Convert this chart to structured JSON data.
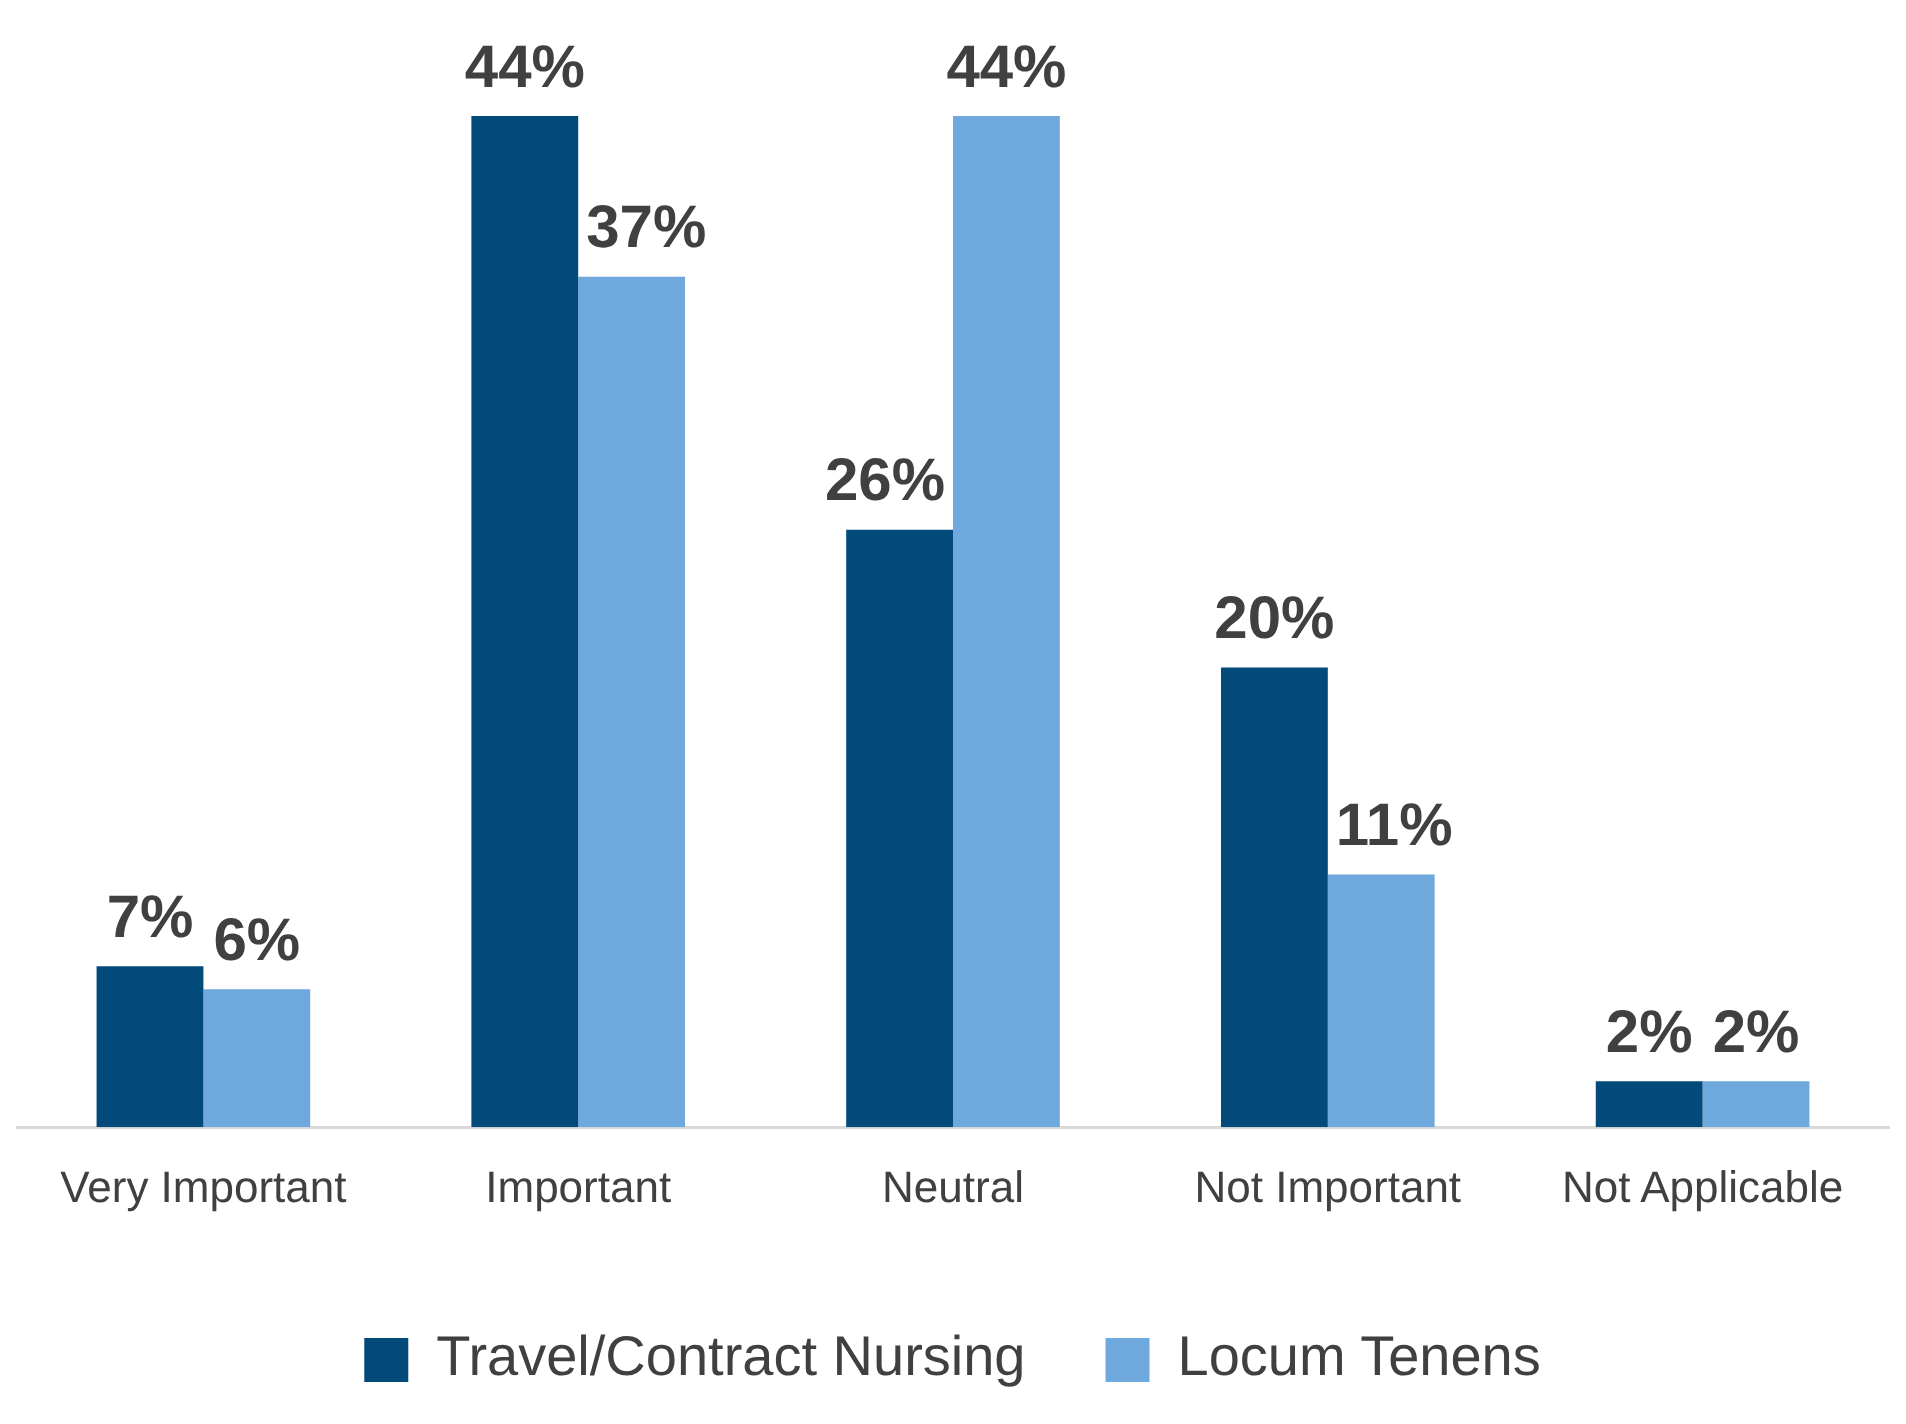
{
  "chart_data": {
    "type": "bar",
    "categories": [
      "Very Important",
      "Important",
      "Neutral",
      "Not Important",
      "Not Applicable"
    ],
    "series": [
      {
        "name": "Travel/Contract Nursing",
        "color": "#024a79",
        "values": [
          7,
          44,
          26,
          20,
          2
        ],
        "value_labels": [
          "7%",
          "44%",
          "26%",
          "20%",
          "2%"
        ]
      },
      {
        "name": "Locum Tenens",
        "color": "#6fa8dc",
        "values": [
          6,
          37,
          44,
          11,
          2
        ],
        "value_labels": [
          "6%",
          "37%",
          "44%",
          "11%",
          "2%"
        ]
      }
    ],
    "legend": "bottom"
  }
}
